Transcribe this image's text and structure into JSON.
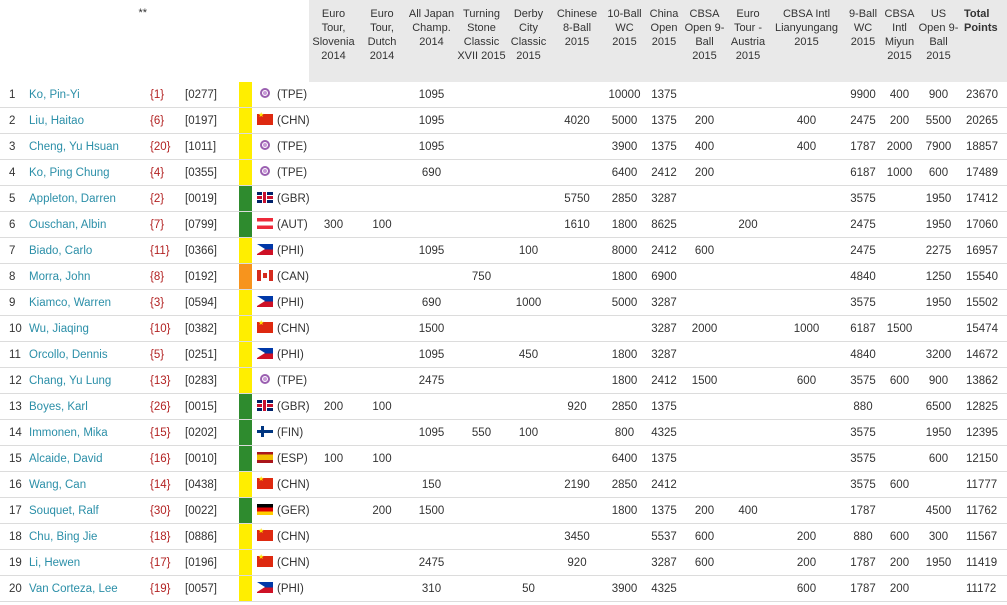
{
  "header": {
    "stars": "**",
    "columns": [
      "Euro Tour, Slovenia 2014",
      "Euro Tour, Dutch 2014",
      "All Japan Champ. 2014",
      "Turning Stone Classic XVII 2015",
      "Derby City Classic 2015",
      "Chinese 8-Ball 2015",
      "10-Ball WC 2015",
      "China Open 2015",
      "CBSA Open 9-Ball 2015",
      "Euro Tour - Austria 2015",
      "CBSA Intl Lianyungang 2015",
      "9-Ball WC 2015",
      "CBSA Intl Miyun 2015",
      "US Open 9-Ball 2015"
    ],
    "total_label": "Total Points"
  },
  "colors": {
    "link": "#2b8fa8",
    "seed": "#b22222",
    "bar_yellow": "#ffee00",
    "bar_green": "#2e8b2e",
    "bar_orange": "#f7941d",
    "header_bg": "#e9e9e9"
  },
  "rows": [
    {
      "rank": "1",
      "name": "Ko, Pin-Yi",
      "seed": "{1}",
      "code": "[0277]",
      "bar": "yellow",
      "flag": "tpe",
      "country": "(TPE)",
      "points": [
        "",
        "",
        "1095",
        "",
        "",
        "",
        "10000",
        "1375",
        "",
        "",
        "",
        "9900",
        "400",
        "900"
      ],
      "total": "23670"
    },
    {
      "rank": "2",
      "name": "Liu, Haitao",
      "seed": "{6}",
      "code": "[0197]",
      "bar": "yellow",
      "flag": "chn",
      "country": "(CHN)",
      "points": [
        "",
        "",
        "1095",
        "",
        "",
        "4020",
        "5000",
        "1375",
        "200",
        "",
        "400",
        "2475",
        "200",
        "5500"
      ],
      "total": "20265"
    },
    {
      "rank": "3",
      "name": "Cheng, Yu Hsuan",
      "seed": "{20}",
      "code": "[1011]",
      "bar": "yellow",
      "flag": "tpe",
      "country": "(TPE)",
      "points": [
        "",
        "",
        "1095",
        "",
        "",
        "",
        "3900",
        "1375",
        "400",
        "",
        "400",
        "1787",
        "2000",
        "7900"
      ],
      "total": "18857"
    },
    {
      "rank": "4",
      "name": "Ko, Ping Chung",
      "seed": "{4}",
      "code": "[0355]",
      "bar": "yellow",
      "flag": "tpe",
      "country": "(TPE)",
      "points": [
        "",
        "",
        "690",
        "",
        "",
        "",
        "6400",
        "2412",
        "200",
        "",
        "",
        "6187",
        "1000",
        "600"
      ],
      "total": "17489"
    },
    {
      "rank": "5",
      "name": "Appleton, Darren",
      "seed": "{2}",
      "code": "[0019]",
      "bar": "green",
      "flag": "gbr",
      "country": "(GBR)",
      "points": [
        "",
        "",
        "",
        "",
        "",
        "5750",
        "2850",
        "3287",
        "",
        "",
        "",
        "3575",
        "",
        "1950"
      ],
      "total": "17412"
    },
    {
      "rank": "6",
      "name": "Ouschan, Albin",
      "seed": "{7}",
      "code": "[0799]",
      "bar": "green",
      "flag": "aut",
      "country": "(AUT)",
      "points": [
        "300",
        "100",
        "",
        "",
        "",
        "1610",
        "1800",
        "8625",
        "",
        "200",
        "",
        "2475",
        "",
        "1950"
      ],
      "total": "17060"
    },
    {
      "rank": "7",
      "name": "Biado, Carlo",
      "seed": "{11}",
      "code": "[0366]",
      "bar": "yellow",
      "flag": "phi",
      "country": "(PHI)",
      "points": [
        "",
        "",
        "1095",
        "",
        "100",
        "",
        "8000",
        "2412",
        "600",
        "",
        "",
        "2475",
        "",
        "2275"
      ],
      "total": "16957"
    },
    {
      "rank": "8",
      "name": "Morra, John",
      "seed": "{8}",
      "code": "[0192]",
      "bar": "orange",
      "flag": "can",
      "country": "(CAN)",
      "points": [
        "",
        "",
        "",
        "750",
        "",
        "",
        "1800",
        "6900",
        "",
        "",
        "",
        "4840",
        "",
        "1250"
      ],
      "total": "15540"
    },
    {
      "rank": "9",
      "name": "Kiamco, Warren",
      "seed": "{3}",
      "code": "[0594]",
      "bar": "yellow",
      "flag": "phi",
      "country": "(PHI)",
      "points": [
        "",
        "",
        "690",
        "",
        "1000",
        "",
        "5000",
        "3287",
        "",
        "",
        "",
        "3575",
        "",
        "1950"
      ],
      "total": "15502"
    },
    {
      "rank": "10",
      "name": "Wu, Jiaqing",
      "seed": "{10}",
      "code": "[0382]",
      "bar": "yellow",
      "flag": "chn",
      "country": "(CHN)",
      "points": [
        "",
        "",
        "1500",
        "",
        "",
        "",
        "",
        "3287",
        "2000",
        "",
        "1000",
        "6187",
        "1500",
        ""
      ],
      "total": "15474"
    },
    {
      "rank": "11",
      "name": "Orcollo, Dennis",
      "seed": "{5}",
      "code": "[0251]",
      "bar": "yellow",
      "flag": "phi",
      "country": "(PHI)",
      "points": [
        "",
        "",
        "1095",
        "",
        "450",
        "",
        "1800",
        "3287",
        "",
        "",
        "",
        "4840",
        "",
        "3200"
      ],
      "total": "14672"
    },
    {
      "rank": "12",
      "name": "Chang, Yu Lung",
      "seed": "{13}",
      "code": "[0283]",
      "bar": "yellow",
      "flag": "tpe",
      "country": "(TPE)",
      "points": [
        "",
        "",
        "2475",
        "",
        "",
        "",
        "1800",
        "2412",
        "1500",
        "",
        "600",
        "3575",
        "600",
        "900"
      ],
      "total": "13862"
    },
    {
      "rank": "13",
      "name": "Boyes, Karl",
      "seed": "{26}",
      "code": "[0015]",
      "bar": "green",
      "flag": "gbr",
      "country": "(GBR)",
      "points": [
        "200",
        "100",
        "",
        "",
        "",
        "920",
        "2850",
        "1375",
        "",
        "",
        "",
        "880",
        "",
        "6500"
      ],
      "total": "12825"
    },
    {
      "rank": "14",
      "name": "Immonen, Mika",
      "seed": "{15}",
      "code": "[0202]",
      "bar": "green",
      "flag": "fin",
      "country": "(FIN)",
      "points": [
        "",
        "",
        "1095",
        "550",
        "100",
        "",
        "800",
        "4325",
        "",
        "",
        "",
        "3575",
        "",
        "1950"
      ],
      "total": "12395"
    },
    {
      "rank": "15",
      "name": "Alcaide, David",
      "seed": "{16}",
      "code": "[0010]",
      "bar": "green",
      "flag": "esp",
      "country": "(ESP)",
      "points": [
        "100",
        "100",
        "",
        "",
        "",
        "",
        "6400",
        "1375",
        "",
        "",
        "",
        "3575",
        "",
        "600"
      ],
      "total": "12150"
    },
    {
      "rank": "16",
      "name": "Wang, Can",
      "seed": "{14}",
      "code": "[0438]",
      "bar": "yellow",
      "flag": "chn",
      "country": "(CHN)",
      "points": [
        "",
        "",
        "150",
        "",
        "",
        "2190",
        "2850",
        "2412",
        "",
        "",
        "",
        "3575",
        "600",
        ""
      ],
      "total": "11777"
    },
    {
      "rank": "17",
      "name": "Souquet, Ralf",
      "seed": "{30}",
      "code": "[0022]",
      "bar": "green",
      "flag": "ger",
      "country": "(GER)",
      "points": [
        "",
        "200",
        "1500",
        "",
        "",
        "",
        "1800",
        "1375",
        "200",
        "400",
        "",
        "1787",
        "",
        "4500"
      ],
      "total": "11762"
    },
    {
      "rank": "18",
      "name": "Chu, Bing Jie",
      "seed": "{18}",
      "code": "[0886]",
      "bar": "yellow",
      "flag": "chn",
      "country": "(CHN)",
      "points": [
        "",
        "",
        "",
        "",
        "",
        "3450",
        "",
        "5537",
        "600",
        "",
        "200",
        "880",
        "600",
        "300"
      ],
      "total": "11567"
    },
    {
      "rank": "19",
      "name": "Li, Hewen",
      "seed": "{17}",
      "code": "[0196]",
      "bar": "yellow",
      "flag": "chn",
      "country": "(CHN)",
      "points": [
        "",
        "",
        "2475",
        "",
        "",
        "920",
        "",
        "3287",
        "600",
        "",
        "200",
        "1787",
        "200",
        "1950"
      ],
      "total": "11419"
    },
    {
      "rank": "20",
      "name": "Van Corteza, Lee",
      "seed": "{19}",
      "code": "[0057]",
      "bar": "yellow",
      "flag": "phi",
      "country": "(PHI)",
      "points": [
        "",
        "",
        "310",
        "",
        "50",
        "",
        "3900",
        "4325",
        "",
        "",
        "600",
        "1787",
        "200",
        ""
      ],
      "total": "11172"
    }
  ]
}
